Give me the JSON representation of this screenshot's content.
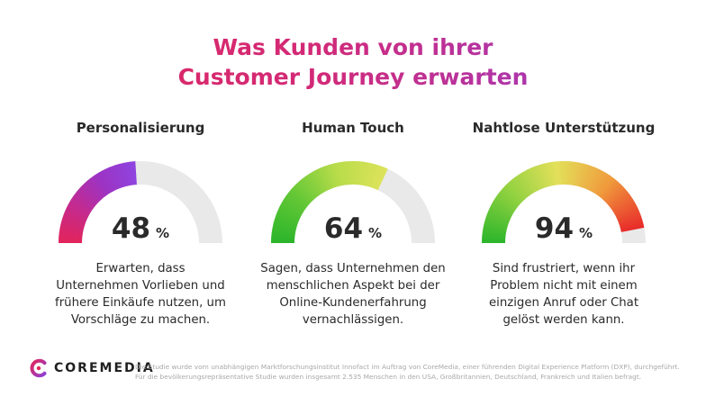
{
  "title": {
    "line1": "Was Kunden von ihrer",
    "line2": "Customer Journey erwarten"
  },
  "chart_data": {
    "type": "gauge",
    "max": 100,
    "track_color": "#e9e9e9",
    "gauges": [
      {
        "label": "Personalisierung",
        "value": 48,
        "unit": "%",
        "description": [
          "Erwarten, dass",
          "Unternehmen Vorlieben und",
          "frühere Einkäufe nutzen, um",
          "Vorschläge zu machen."
        ],
        "gradient": [
          "#e2245a",
          "#c42a8e",
          "#9d33c4",
          "#8e44e0"
        ]
      },
      {
        "label": "Human Touch",
        "value": 64,
        "unit": "%",
        "description": [
          "Sagen, dass Unternehmen den",
          "menschlichen Aspekt bei der",
          "Online-Kundenerfahrung",
          "vernachlässigen."
        ],
        "gradient": [
          "#2bb52b",
          "#62c735",
          "#b8dc4a",
          "#dde35a"
        ]
      },
      {
        "label": "Nahtlose Unterstützung",
        "value": 94,
        "unit": "%",
        "description": [
          "Sind frustriert, wenn ihr",
          "Problem nicht mit einem",
          "einzigen Anruf oder Chat",
          "gelöst werden kann."
        ],
        "gradient": [
          "#2bb52b",
          "#8fd13f",
          "#e3e05a",
          "#f09a3c",
          "#e82a2a"
        ]
      }
    ]
  },
  "footer": {
    "brand": "COREMEDIA",
    "brand_colors": [
      "#e0265a",
      "#8e3fd6"
    ],
    "note_line1": "Die Studie wurde vom unabhängigen Marktforschungsinstitut Innofact im Auftrag von CoreMedia, einer führenden Digital Experience Platform (DXP), durchgeführt.",
    "note_line2": "Für die bevölkerungsrepräsentative Studie wurden insgesamt 2.535 Menschen in den USA, Großbritannien, Deutschland, Frankreich und Italien befragt."
  }
}
